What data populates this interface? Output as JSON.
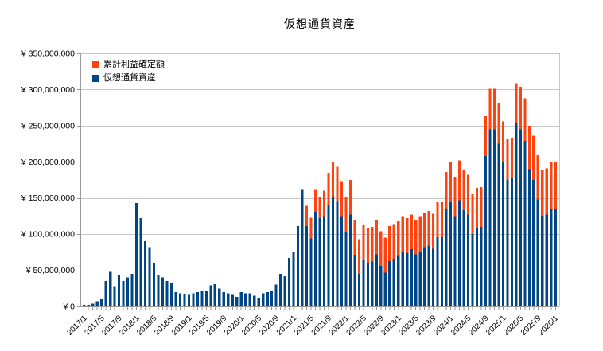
{
  "title": "仮想通貨資産",
  "legend": {
    "items": [
      {
        "label": "累計利益確定額",
        "color": "#FF420E"
      },
      {
        "label": "仮想通貨資産",
        "color": "#004586"
      }
    ]
  },
  "colors": {
    "background": "#FFFFFF",
    "gridline": "#C6C6C6",
    "axis": "#999999",
    "text": "#000000",
    "profit_orange": "#FF420E",
    "asset_blue": "#004586"
  },
  "chart_data": {
    "type": "bar",
    "stacked": true,
    "title": "仮想通貨資産",
    "xlabel": "",
    "ylabel": "",
    "value_unit": "millions of JPY",
    "x_start_month": "2017/1",
    "x_end_month": "2026/1",
    "months_count": 109,
    "x_tick_every_months": 4,
    "x_tick_labels": [
      "2017/1",
      "2017/5",
      "2017/9",
      "2018/1",
      "2018/5",
      "2018/9",
      "2019/1",
      "2019/5",
      "2019/9",
      "2020/1",
      "2020/5",
      "2020/9",
      "2021/1",
      "2021/5",
      "2021/9",
      "2022/1",
      "2022/5",
      "2022/9",
      "2023/1",
      "2023/5",
      "2023/9",
      "2024/1",
      "2024/5",
      "2024/9",
      "2025/1",
      "2025/5",
      "2025/9",
      "2026/1"
    ],
    "y_tick_labels": [
      "¥ 0",
      "¥ 50,000,000",
      "¥ 100,000,000",
      "¥ 150,000,000",
      "¥ 200,000,000",
      "¥ 250,000,000",
      "¥ 300,000,000",
      "¥ 350,000,000"
    ],
    "ylim_millions": [
      0,
      350
    ],
    "y_gridline_step_millions": 50,
    "grid": "horizontal",
    "legend_position": "top-left-inside",
    "series": [
      {
        "name": "仮想通貨資産",
        "color": "#004586",
        "stack_order": "bottom",
        "values_millions": [
          2,
          2,
          4,
          7,
          10,
          35,
          48,
          28,
          44,
          35,
          40,
          45,
          143,
          122,
          90,
          82,
          60,
          44,
          40,
          35,
          33,
          20,
          18,
          17,
          16,
          18,
          20,
          21,
          22,
          29,
          31,
          25,
          20,
          18,
          16,
          13,
          20,
          18,
          18,
          15,
          11,
          18,
          20,
          22,
          30,
          45,
          42,
          67,
          76,
          111,
          161,
          111,
          94,
          131,
          122,
          124,
          140,
          152,
          145,
          124,
          103,
          127,
          71,
          45,
          64,
          60,
          62,
          72,
          56,
          47,
          63,
          65,
          70,
          76,
          74,
          79,
          72,
          76,
          82,
          84,
          80,
          96,
          96,
          135,
          144,
          124,
          147,
          133,
          127,
          100,
          109,
          110,
          208,
          245,
          245,
          225,
          200,
          175,
          177,
          253,
          245,
          229,
          190,
          175,
          148,
          125,
          127,
          135,
          135
        ]
      },
      {
        "name": "累計利益確定額",
        "color": "#FF420E",
        "stack_order": "top",
        "values_millions": [
          0,
          0,
          0,
          0,
          0,
          0,
          0,
          0,
          0,
          0,
          0,
          0,
          0,
          0,
          0,
          0,
          0,
          0,
          0,
          0,
          0,
          0,
          0,
          0,
          0,
          0,
          0,
          0,
          0,
          0,
          0,
          0,
          0,
          0,
          0,
          0,
          0,
          0,
          0,
          0,
          0,
          0,
          0,
          0,
          0,
          0,
          0,
          0,
          0,
          0,
          0,
          28,
          29,
          30,
          30,
          36,
          45,
          48,
          48,
          48,
          48,
          48,
          48,
          48,
          48,
          48,
          48,
          48,
          48,
          48,
          48,
          48,
          48,
          48,
          48,
          48,
          48,
          48,
          48,
          48,
          48,
          48,
          48,
          51,
          55,
          55,
          55,
          55,
          55,
          55,
          55,
          55,
          55,
          56,
          56,
          56,
          56,
          56,
          56,
          56,
          59,
          59,
          60,
          61,
          61,
          63,
          64,
          64,
          64
        ]
      }
    ]
  }
}
